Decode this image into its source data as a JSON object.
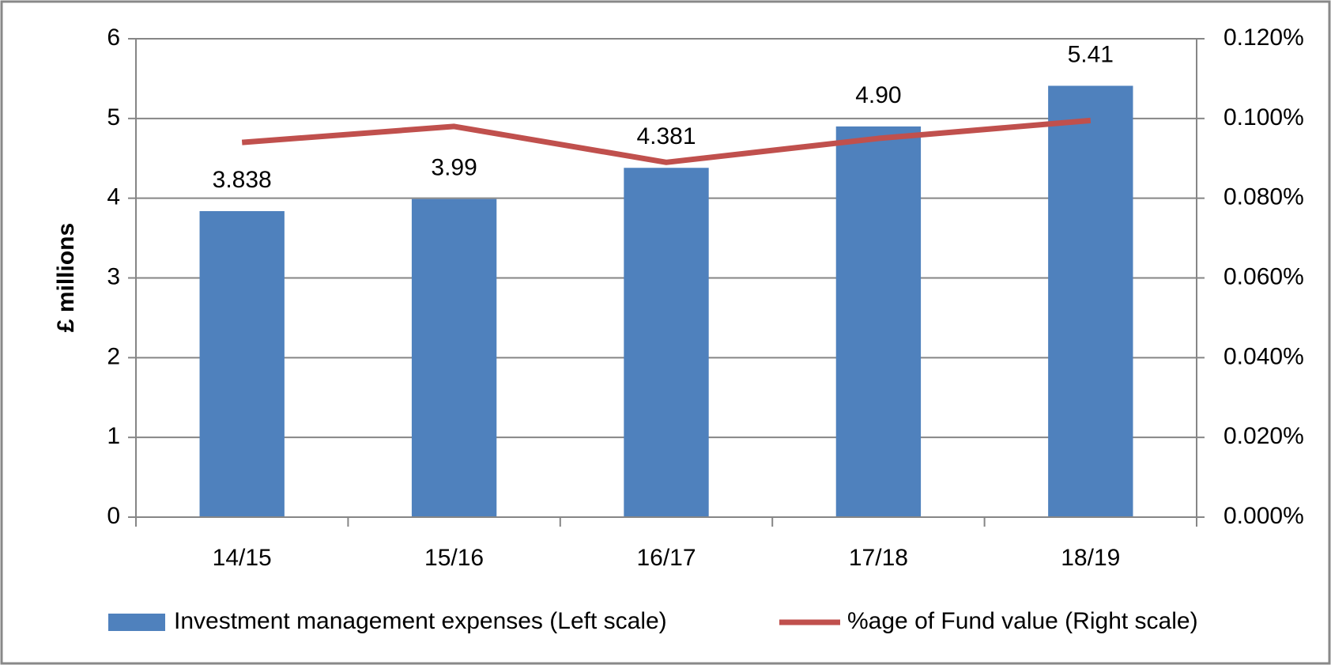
{
  "chart_data": {
    "type": "bar_line",
    "y_label": "£ millions",
    "categories": [
      "14/15",
      "15/16",
      "16/17",
      "17/18",
      "18/19"
    ],
    "series": [
      {
        "name": "Investment management expenses (Left scale)",
        "type": "bar",
        "color": "#4f81bd",
        "values": [
          3.838,
          3.99,
          4.381,
          4.9,
          5.41
        ],
        "value_labels": [
          "3.838",
          "3.99",
          "4.381",
          "4.90",
          "5.41"
        ]
      },
      {
        "name": "%age of Fund value (Right scale)",
        "type": "line",
        "axis": "y2",
        "color": "#c0504d",
        "values": [
          0.094,
          0.098,
          0.089,
          0.095,
          0.0995
        ]
      }
    ],
    "ylim": [
      0,
      6
    ],
    "yticks": [
      0,
      1,
      2,
      3,
      4,
      5,
      6
    ],
    "y2lim": [
      0,
      0.12
    ],
    "y2ticks": [
      {
        "value": 0,
        "label": "0.000%"
      },
      {
        "value": 0.02,
        "label": "0.020%"
      },
      {
        "value": 0.04,
        "label": "0.040%"
      },
      {
        "value": 0.06,
        "label": "0.060%"
      },
      {
        "value": 0.08,
        "label": "0.080%"
      },
      {
        "value": 0.1,
        "label": "0.100%"
      },
      {
        "value": 0.12,
        "label": "0.120%"
      }
    ],
    "grid": true,
    "legend": "bottom"
  }
}
